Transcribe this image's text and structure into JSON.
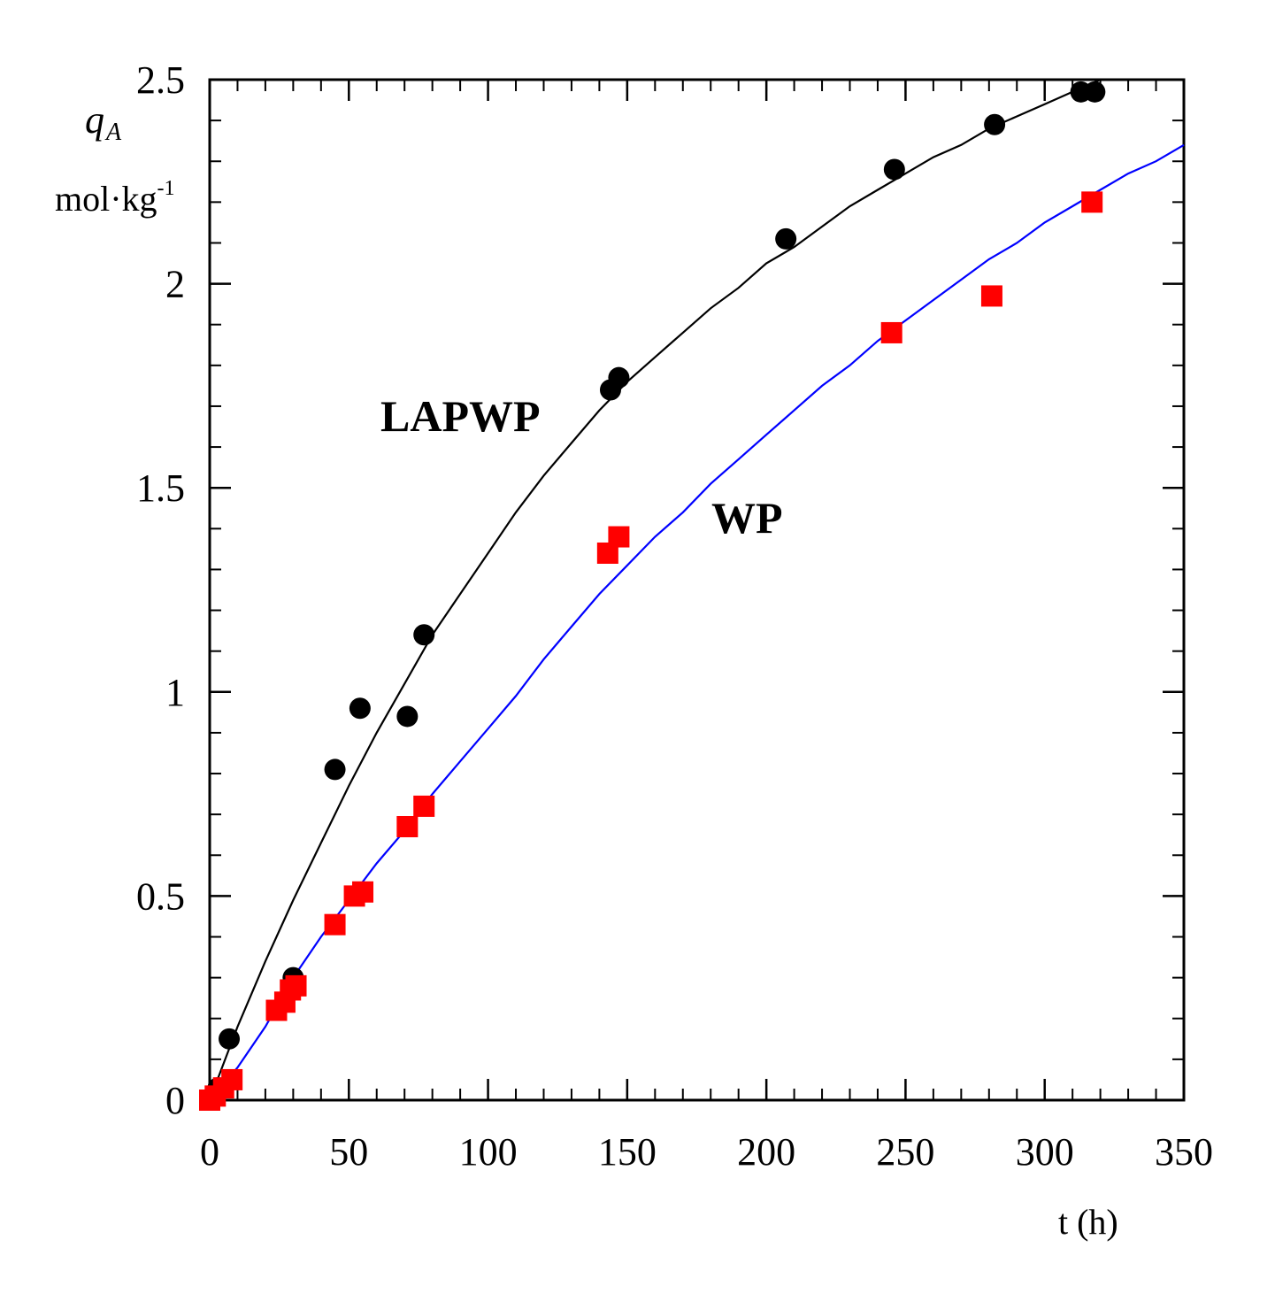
{
  "chart_data": {
    "type": "scatter",
    "xlabel": "t (h)",
    "ylabel": {
      "symbol": "q",
      "subscript": "A",
      "unit": "mol·kg",
      "unit_exponent": "-1"
    },
    "xlim": [
      0,
      350
    ],
    "ylim": [
      0,
      2.5
    ],
    "x_ticks": [
      0,
      50,
      100,
      150,
      200,
      250,
      300,
      350
    ],
    "y_ticks": [
      0,
      0.5,
      1,
      1.5,
      2,
      2.5
    ],
    "x_tick_labels": [
      "0",
      "50",
      "100",
      "150",
      "200",
      "250",
      "300",
      "350"
    ],
    "y_tick_labels": [
      "0",
      "0.5",
      "1",
      "1.5",
      "2",
      "2.5"
    ],
    "grid": false,
    "series": [
      {
        "name": "LAPWP",
        "color": "#000000",
        "marker": "circle",
        "fit_color": "#000000",
        "points": [
          {
            "x": 0,
            "y": 0
          },
          {
            "x": 3,
            "y": 0.03
          },
          {
            "x": 7,
            "y": 0.15
          },
          {
            "x": 30,
            "y": 0.3
          },
          {
            "x": 45,
            "y": 0.81
          },
          {
            "x": 54,
            "y": 0.96
          },
          {
            "x": 71,
            "y": 0.94
          },
          {
            "x": 77,
            "y": 1.14
          },
          {
            "x": 144,
            "y": 1.74
          },
          {
            "x": 147,
            "y": 1.77
          },
          {
            "x": 207,
            "y": 2.11
          },
          {
            "x": 246,
            "y": 2.28
          },
          {
            "x": 282,
            "y": 2.39
          },
          {
            "x": 313,
            "y": 2.47
          },
          {
            "x": 318,
            "y": 2.47
          }
        ],
        "fit": [
          {
            "x": 0,
            "y": 0
          },
          {
            "x": 10,
            "y": 0.18
          },
          {
            "x": 20,
            "y": 0.34
          },
          {
            "x": 30,
            "y": 0.49
          },
          {
            "x": 40,
            "y": 0.63
          },
          {
            "x": 50,
            "y": 0.77
          },
          {
            "x": 60,
            "y": 0.9
          },
          {
            "x": 70,
            "y": 1.02
          },
          {
            "x": 80,
            "y": 1.14
          },
          {
            "x": 90,
            "y": 1.24
          },
          {
            "x": 100,
            "y": 1.34
          },
          {
            "x": 110,
            "y": 1.44
          },
          {
            "x": 120,
            "y": 1.53
          },
          {
            "x": 130,
            "y": 1.61
          },
          {
            "x": 140,
            "y": 1.69
          },
          {
            "x": 150,
            "y": 1.76
          },
          {
            "x": 160,
            "y": 1.82
          },
          {
            "x": 170,
            "y": 1.88
          },
          {
            "x": 180,
            "y": 1.94
          },
          {
            "x": 190,
            "y": 1.99
          },
          {
            "x": 200,
            "y": 2.05
          },
          {
            "x": 210,
            "y": 2.09
          },
          {
            "x": 220,
            "y": 2.14
          },
          {
            "x": 230,
            "y": 2.19
          },
          {
            "x": 240,
            "y": 2.23
          },
          {
            "x": 250,
            "y": 2.27
          },
          {
            "x": 260,
            "y": 2.31
          },
          {
            "x": 270,
            "y": 2.34
          },
          {
            "x": 280,
            "y": 2.38
          },
          {
            "x": 290,
            "y": 2.41
          },
          {
            "x": 300,
            "y": 2.44
          },
          {
            "x": 310,
            "y": 2.47
          },
          {
            "x": 320,
            "y": 2.5
          }
        ]
      },
      {
        "name": "WP",
        "color": "#ff0000",
        "marker": "square",
        "fit_color": "#0000ff",
        "points": [
          {
            "x": 0,
            "y": 0
          },
          {
            "x": 2,
            "y": 0.01
          },
          {
            "x": 5,
            "y": 0.03
          },
          {
            "x": 8,
            "y": 0.05
          },
          {
            "x": 24,
            "y": 0.22
          },
          {
            "x": 27,
            "y": 0.24
          },
          {
            "x": 29,
            "y": 0.27
          },
          {
            "x": 31,
            "y": 0.28
          },
          {
            "x": 45,
            "y": 0.43
          },
          {
            "x": 52,
            "y": 0.5
          },
          {
            "x": 55,
            "y": 0.51
          },
          {
            "x": 71,
            "y": 0.67
          },
          {
            "x": 77,
            "y": 0.72
          },
          {
            "x": 143,
            "y": 1.34
          },
          {
            "x": 147,
            "y": 1.38
          },
          {
            "x": 245,
            "y": 1.88
          },
          {
            "x": 281,
            "y": 1.97
          },
          {
            "x": 317,
            "y": 2.2
          }
        ],
        "fit": [
          {
            "x": 0,
            "y": 0
          },
          {
            "x": 10,
            "y": 0.08
          },
          {
            "x": 20,
            "y": 0.18
          },
          {
            "x": 30,
            "y": 0.3
          },
          {
            "x": 40,
            "y": 0.4
          },
          {
            "x": 50,
            "y": 0.49
          },
          {
            "x": 60,
            "y": 0.58
          },
          {
            "x": 70,
            "y": 0.66
          },
          {
            "x": 80,
            "y": 0.75
          },
          {
            "x": 90,
            "y": 0.83
          },
          {
            "x": 100,
            "y": 0.91
          },
          {
            "x": 110,
            "y": 0.99
          },
          {
            "x": 120,
            "y": 1.08
          },
          {
            "x": 130,
            "y": 1.16
          },
          {
            "x": 140,
            "y": 1.24
          },
          {
            "x": 150,
            "y": 1.31
          },
          {
            "x": 160,
            "y": 1.38
          },
          {
            "x": 170,
            "y": 1.44
          },
          {
            "x": 180,
            "y": 1.51
          },
          {
            "x": 190,
            "y": 1.57
          },
          {
            "x": 200,
            "y": 1.63
          },
          {
            "x": 210,
            "y": 1.69
          },
          {
            "x": 220,
            "y": 1.75
          },
          {
            "x": 230,
            "y": 1.8
          },
          {
            "x": 240,
            "y": 1.86
          },
          {
            "x": 250,
            "y": 1.91
          },
          {
            "x": 260,
            "y": 1.96
          },
          {
            "x": 270,
            "y": 2.01
          },
          {
            "x": 280,
            "y": 2.06
          },
          {
            "x": 290,
            "y": 2.1
          },
          {
            "x": 300,
            "y": 2.15
          },
          {
            "x": 310,
            "y": 2.19
          },
          {
            "x": 320,
            "y": 2.23
          },
          {
            "x": 330,
            "y": 2.27
          },
          {
            "x": 340,
            "y": 2.3
          },
          {
            "x": 350,
            "y": 2.34
          }
        ]
      }
    ],
    "annotations": [
      {
        "text": "LAPWP",
        "series": "LAPWP"
      },
      {
        "text": "WP",
        "series": "WP"
      }
    ]
  }
}
